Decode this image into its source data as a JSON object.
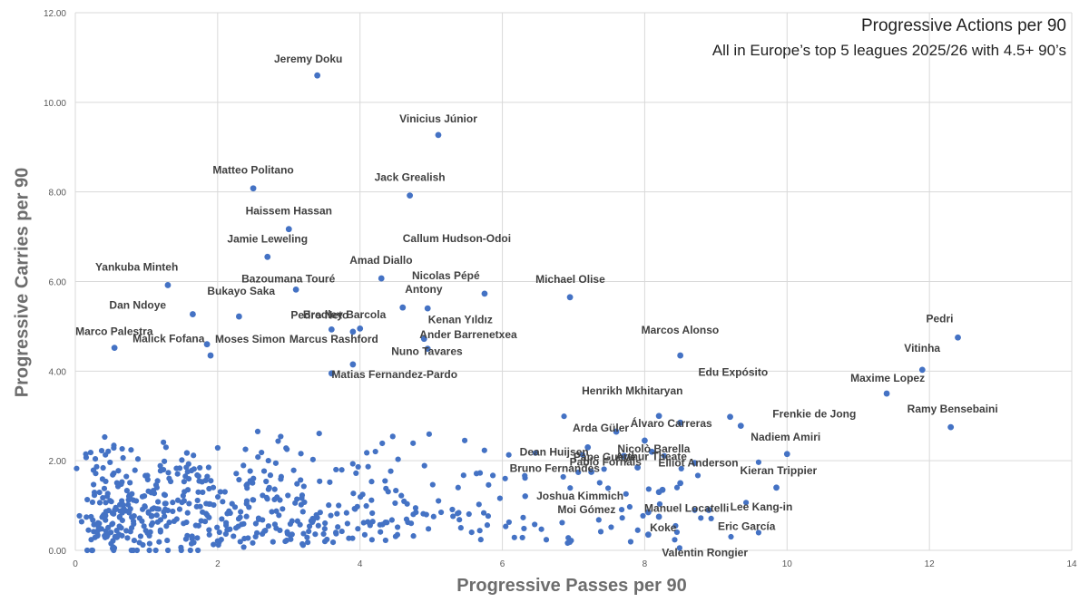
{
  "chart_data": {
    "type": "scatter",
    "title": "Progressive Actions per 90",
    "subtitle": "All in Europe’s top 5 leagues 2025/26 with 4.5+ 90’s",
    "xlabel": "Progressive Passes per 90",
    "ylabel": "Progressive Carries per 90",
    "xlim": [
      0,
      14
    ],
    "ylim": [
      0,
      12
    ],
    "xticks": [
      "0",
      "2",
      "4",
      "6",
      "8",
      "10",
      "12",
      "14"
    ],
    "yticks": [
      "0.00",
      "2.00",
      "4.00",
      "6.00",
      "8.00",
      "10.00",
      "12.00"
    ],
    "grid": true,
    "marker_color": "#4472C4",
    "labeled_points": [
      {
        "name": "Jeremy Doku",
        "x": 3.4,
        "y": 10.6
      },
      {
        "name": "Vinicius Júnior",
        "x": 5.1,
        "y": 9.27
      },
      {
        "name": "Matteo Politano",
        "x": 2.5,
        "y": 8.08
      },
      {
        "name": "Jack Grealish",
        "x": 4.7,
        "y": 7.92
      },
      {
        "name": "Haissem Hassan",
        "x": 3.0,
        "y": 7.17
      },
      {
        "name": "Jamie Leweling",
        "x": 2.7,
        "y": 6.55
      },
      {
        "name": "Callum Hudson-Odoi",
        "x": 4.6,
        "y": 5.42
      },
      {
        "name": "Yankuba Minteh",
        "x": 1.3,
        "y": 5.92
      },
      {
        "name": "Amad Diallo",
        "x": 4.3,
        "y": 6.07
      },
      {
        "name": "Bazoumana Touré",
        "x": 3.1,
        "y": 5.82
      },
      {
        "name": "Nicolas Pépé",
        "x": 5.75,
        "y": 5.73
      },
      {
        "name": "Michael Olise",
        "x": 6.95,
        "y": 5.65
      },
      {
        "name": "Pedro Neto",
        "x": 3.6,
        "y": 4.93
      },
      {
        "name": "Antony",
        "x": 4.95,
        "y": 5.4
      },
      {
        "name": "Dan Ndoye",
        "x": 1.65,
        "y": 5.27
      },
      {
        "name": "Bukayo Saka",
        "x": 2.3,
        "y": 5.22
      },
      {
        "name": "Kenan Yıldız",
        "x": 4.0,
        "y": 4.95
      },
      {
        "name": "Bradley Barcola",
        "x": 3.9,
        "y": 4.88
      },
      {
        "name": "Malick Fofana",
        "x": 1.85,
        "y": 4.6
      },
      {
        "name": "Marco Palestra",
        "x": 0.55,
        "y": 4.52
      },
      {
        "name": "Pedri",
        "x": 12.4,
        "y": 4.75
      },
      {
        "name": "Ander Barrenetxea",
        "x": 4.9,
        "y": 4.72
      },
      {
        "name": "Marcus Rashford",
        "x": 3.9,
        "y": 4.15
      },
      {
        "name": "Moses Simon",
        "x": 1.9,
        "y": 4.35
      },
      {
        "name": "Marcos Alonso",
        "x": 8.5,
        "y": 4.35
      },
      {
        "name": "Nuno Tavares",
        "x": 4.95,
        "y": 4.5
      },
      {
        "name": "Vitinha",
        "x": 11.9,
        "y": 4.03
      },
      {
        "name": "Matias Fernandez-Pardo",
        "x": 3.6,
        "y": 3.95
      },
      {
        "name": "Maxime Lopez",
        "x": 11.4,
        "y": 3.5
      },
      {
        "name": "Edu Expósito",
        "x": 9.2,
        "y": 2.98
      },
      {
        "name": "Henrikh Mkhitaryan",
        "x": 8.2,
        "y": 3.0
      },
      {
        "name": "Frenkie de Jong",
        "x": 9.35,
        "y": 2.78
      },
      {
        "name": "Álvaro Carreras",
        "x": 8.5,
        "y": 2.85
      },
      {
        "name": "Ramy Bensebaini",
        "x": 12.3,
        "y": 2.75
      },
      {
        "name": "Arda Güler",
        "x": 7.6,
        "y": 2.65
      },
      {
        "name": "Nicolò Barella",
        "x": 8.0,
        "y": 2.45
      },
      {
        "name": "Dean Huijsen",
        "x": 7.2,
        "y": 2.3
      },
      {
        "name": "Nadiem Amiri",
        "x": 10.0,
        "y": 2.15
      },
      {
        "name": "Pape Gueye",
        "x": 7.7,
        "y": 2.1
      },
      {
        "name": "Arthur Theate",
        "x": 8.1,
        "y": 2.2
      },
      {
        "name": "Elliot Anderson",
        "x": 8.7,
        "y": 1.95
      },
      {
        "name": "Bruno Fernandes",
        "x": 7.25,
        "y": 1.75
      },
      {
        "name": "Pablo Fornals",
        "x": 7.9,
        "y": 1.85
      },
      {
        "name": "Kieran Trippier",
        "x": 9.85,
        "y": 1.4
      },
      {
        "name": "Joshua Kimmich",
        "x": 8.2,
        "y": 1.3
      },
      {
        "name": "Manuel Locatelli",
        "x": 8.25,
        "y": 1.35
      },
      {
        "name": "Lee Kang-in",
        "x": 8.5,
        "y": 1.5
      },
      {
        "name": "Moi Gómez",
        "x": 8.05,
        "y": 0.85
      },
      {
        "name": "Eric García",
        "x": 8.9,
        "y": 0.9
      },
      {
        "name": "Koke",
        "x": 8.2,
        "y": 0.75
      },
      {
        "name": "Valentin Rongier",
        "x": 8.05,
        "y": 0.35
      }
    ]
  }
}
